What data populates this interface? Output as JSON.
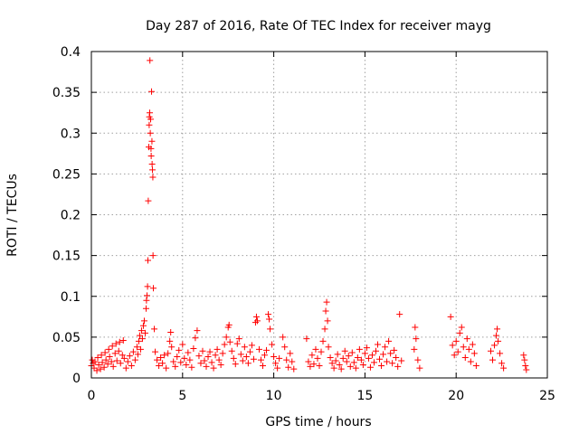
{
  "colors": {
    "series": "#ff0000",
    "grid": "#a0a0a0",
    "axis": "#000000"
  },
  "chart_data": {
    "type": "scatter",
    "title": "Day 287 of 2016, Rate Of TEC Index for receiver mayg",
    "xlabel": "GPS time / hours",
    "ylabel": "ROTI / TECUs",
    "xlim": [
      0,
      25
    ],
    "ylim": [
      0,
      0.4
    ],
    "xticks": [
      0,
      5,
      10,
      15,
      20,
      25
    ],
    "yticks": [
      0,
      0.05,
      0.1,
      0.15,
      0.2,
      0.25,
      0.3,
      0.35,
      0.4
    ],
    "xtick_labels": [
      "0",
      "5",
      "10",
      "15",
      "20",
      "25"
    ],
    "ytick_labels": [
      "0",
      "0.05",
      "0.1",
      "0.15",
      "0.2",
      "0.25",
      "0.3",
      "0.35",
      "0.4"
    ],
    "grid": true,
    "marker": "+",
    "series": [
      {
        "name": "ROTI mayg",
        "points": [
          [
            0.0,
            0.015
          ],
          [
            0.05,
            0.022
          ],
          [
            0.1,
            0.018
          ],
          [
            0.15,
            0.012
          ],
          [
            0.2,
            0.02
          ],
          [
            0.3,
            0.009
          ],
          [
            0.35,
            0.025
          ],
          [
            0.4,
            0.016
          ],
          [
            0.5,
            0.011
          ],
          [
            0.55,
            0.028
          ],
          [
            0.6,
            0.019
          ],
          [
            0.7,
            0.013
          ],
          [
            0.75,
            0.031
          ],
          [
            0.8,
            0.022
          ],
          [
            0.9,
            0.017
          ],
          [
            0.95,
            0.035
          ],
          [
            1.0,
            0.026
          ],
          [
            1.1,
            0.02
          ],
          [
            1.15,
            0.039
          ],
          [
            1.2,
            0.014
          ],
          [
            1.3,
            0.03
          ],
          [
            1.35,
            0.042
          ],
          [
            1.4,
            0.021
          ],
          [
            1.5,
            0.033
          ],
          [
            1.55,
            0.044
          ],
          [
            1.6,
            0.018
          ],
          [
            1.7,
            0.028
          ],
          [
            1.75,
            0.046
          ],
          [
            1.8,
            0.024
          ],
          [
            1.9,
            0.012
          ],
          [
            2.0,
            0.02
          ],
          [
            2.1,
            0.027
          ],
          [
            2.2,
            0.015
          ],
          [
            2.3,
            0.032
          ],
          [
            2.4,
            0.022
          ],
          [
            2.5,
            0.038
          ],
          [
            2.55,
            0.029
          ],
          [
            2.6,
            0.045
          ],
          [
            2.65,
            0.052
          ],
          [
            2.7,
            0.035
          ],
          [
            2.75,
            0.058
          ],
          [
            2.8,
            0.048
          ],
          [
            2.85,
            0.064
          ],
          [
            2.9,
            0.07
          ],
          [
            2.95,
            0.055
          ],
          [
            3.0,
            0.085
          ],
          [
            3.02,
            0.095
          ],
          [
            3.05,
            0.101
          ],
          [
            3.08,
            0.112
          ],
          [
            3.1,
            0.144
          ],
          [
            3.12,
            0.217
          ],
          [
            3.15,
            0.283
          ],
          [
            3.17,
            0.31
          ],
          [
            3.18,
            0.32
          ],
          [
            3.2,
            0.325
          ],
          [
            3.21,
            0.389
          ],
          [
            3.23,
            0.3
          ],
          [
            3.25,
            0.317
          ],
          [
            3.27,
            0.281
          ],
          [
            3.28,
            0.272
          ],
          [
            3.3,
            0.351
          ],
          [
            3.32,
            0.29
          ],
          [
            3.33,
            0.262
          ],
          [
            3.35,
            0.255
          ],
          [
            3.37,
            0.246
          ],
          [
            3.38,
            0.15
          ],
          [
            3.4,
            0.11
          ],
          [
            3.45,
            0.06
          ],
          [
            3.5,
            0.032
          ],
          [
            3.6,
            0.022
          ],
          [
            3.7,
            0.015
          ],
          [
            3.8,
            0.025
          ],
          [
            3.9,
            0.018
          ],
          [
            4.0,
            0.028
          ],
          [
            4.1,
            0.012
          ],
          [
            4.2,
            0.03
          ],
          [
            4.3,
            0.045
          ],
          [
            4.35,
            0.056
          ],
          [
            4.4,
            0.038
          ],
          [
            4.5,
            0.02
          ],
          [
            4.6,
            0.014
          ],
          [
            4.7,
            0.026
          ],
          [
            4.8,
            0.034
          ],
          [
            4.9,
            0.019
          ],
          [
            5.0,
            0.041
          ],
          [
            5.1,
            0.024
          ],
          [
            5.2,
            0.016
          ],
          [
            5.3,
            0.031
          ],
          [
            5.4,
            0.022
          ],
          [
            5.5,
            0.013
          ],
          [
            5.6,
            0.036
          ],
          [
            5.7,
            0.049
          ],
          [
            5.8,
            0.058
          ],
          [
            5.9,
            0.027
          ],
          [
            6.0,
            0.018
          ],
          [
            6.1,
            0.033
          ],
          [
            6.2,
            0.021
          ],
          [
            6.3,
            0.014
          ],
          [
            6.4,
            0.026
          ],
          [
            6.5,
            0.032
          ],
          [
            6.6,
            0.019
          ],
          [
            6.7,
            0.012
          ],
          [
            6.8,
            0.028
          ],
          [
            6.9,
            0.035
          ],
          [
            7.0,
            0.022
          ],
          [
            7.1,
            0.016
          ],
          [
            7.2,
            0.03
          ],
          [
            7.3,
            0.041
          ],
          [
            7.4,
            0.05
          ],
          [
            7.5,
            0.062
          ],
          [
            7.55,
            0.065
          ],
          [
            7.6,
            0.044
          ],
          [
            7.7,
            0.033
          ],
          [
            7.8,
            0.024
          ],
          [
            7.9,
            0.017
          ],
          [
            8.0,
            0.042
          ],
          [
            8.1,
            0.048
          ],
          [
            8.2,
            0.029
          ],
          [
            8.3,
            0.021
          ],
          [
            8.4,
            0.038
          ],
          [
            8.5,
            0.026
          ],
          [
            8.6,
            0.018
          ],
          [
            8.7,
            0.032
          ],
          [
            8.8,
            0.04
          ],
          [
            8.9,
            0.023
          ],
          [
            9.0,
            0.068
          ],
          [
            9.05,
            0.075
          ],
          [
            9.1,
            0.07
          ],
          [
            9.2,
            0.035
          ],
          [
            9.3,
            0.022
          ],
          [
            9.4,
            0.015
          ],
          [
            9.5,
            0.028
          ],
          [
            9.6,
            0.034
          ],
          [
            9.7,
            0.078
          ],
          [
            9.75,
            0.072
          ],
          [
            9.8,
            0.06
          ],
          [
            9.9,
            0.041
          ],
          [
            10.0,
            0.026
          ],
          [
            10.1,
            0.018
          ],
          [
            10.2,
            0.012
          ],
          [
            10.3,
            0.024
          ],
          [
            10.5,
            0.05
          ],
          [
            10.6,
            0.038
          ],
          [
            10.7,
            0.022
          ],
          [
            10.8,
            0.013
          ],
          [
            10.9,
            0.03
          ],
          [
            11.0,
            0.02
          ],
          [
            11.1,
            0.011
          ],
          [
            11.8,
            0.048
          ],
          [
            11.9,
            0.02
          ],
          [
            12.0,
            0.014
          ],
          [
            12.1,
            0.028
          ],
          [
            12.2,
            0.017
          ],
          [
            12.3,
            0.035
          ],
          [
            12.4,
            0.024
          ],
          [
            12.5,
            0.015
          ],
          [
            12.6,
            0.032
          ],
          [
            12.7,
            0.045
          ],
          [
            12.8,
            0.06
          ],
          [
            12.85,
            0.082
          ],
          [
            12.9,
            0.093
          ],
          [
            12.95,
            0.07
          ],
          [
            13.0,
            0.038
          ],
          [
            13.1,
            0.025
          ],
          [
            13.2,
            0.018
          ],
          [
            13.3,
            0.012
          ],
          [
            13.4,
            0.021
          ],
          [
            13.5,
            0.029
          ],
          [
            13.6,
            0.016
          ],
          [
            13.7,
            0.011
          ],
          [
            13.8,
            0.024
          ],
          [
            13.9,
            0.033
          ],
          [
            14.0,
            0.02
          ],
          [
            14.1,
            0.027
          ],
          [
            14.2,
            0.014
          ],
          [
            14.3,
            0.031
          ],
          [
            14.4,
            0.019
          ],
          [
            14.5,
            0.012
          ],
          [
            14.6,
            0.025
          ],
          [
            14.7,
            0.035
          ],
          [
            14.8,
            0.022
          ],
          [
            14.9,
            0.016
          ],
          [
            15.0,
            0.03
          ],
          [
            15.1,
            0.037
          ],
          [
            15.2,
            0.024
          ],
          [
            15.3,
            0.013
          ],
          [
            15.4,
            0.028
          ],
          [
            15.5,
            0.019
          ],
          [
            15.6,
            0.033
          ],
          [
            15.7,
            0.041
          ],
          [
            15.8,
            0.023
          ],
          [
            15.9,
            0.015
          ],
          [
            16.0,
            0.029
          ],
          [
            16.1,
            0.038
          ],
          [
            16.2,
            0.02
          ],
          [
            16.3,
            0.045
          ],
          [
            16.4,
            0.03
          ],
          [
            16.5,
            0.018
          ],
          [
            16.6,
            0.034
          ],
          [
            16.7,
            0.025
          ],
          [
            16.8,
            0.014
          ],
          [
            16.9,
            0.078
          ],
          [
            17.0,
            0.021
          ],
          [
            17.7,
            0.035
          ],
          [
            17.75,
            0.062
          ],
          [
            17.8,
            0.048
          ],
          [
            17.9,
            0.022
          ],
          [
            18.0,
            0.012
          ],
          [
            19.7,
            0.075
          ],
          [
            19.8,
            0.04
          ],
          [
            19.9,
            0.028
          ],
          [
            20.0,
            0.045
          ],
          [
            20.1,
            0.032
          ],
          [
            20.2,
            0.055
          ],
          [
            20.3,
            0.062
          ],
          [
            20.4,
            0.038
          ],
          [
            20.5,
            0.025
          ],
          [
            20.6,
            0.048
          ],
          [
            20.7,
            0.035
          ],
          [
            20.8,
            0.02
          ],
          [
            20.9,
            0.041
          ],
          [
            21.0,
            0.03
          ],
          [
            21.1,
            0.015
          ],
          [
            21.9,
            0.033
          ],
          [
            22.0,
            0.022
          ],
          [
            22.1,
            0.04
          ],
          [
            22.2,
            0.052
          ],
          [
            22.25,
            0.06
          ],
          [
            22.3,
            0.045
          ],
          [
            22.4,
            0.03
          ],
          [
            22.5,
            0.018
          ],
          [
            22.6,
            0.012
          ],
          [
            23.7,
            0.028
          ],
          [
            23.75,
            0.022
          ],
          [
            23.8,
            0.015
          ],
          [
            23.85,
            0.01
          ]
        ]
      }
    ]
  }
}
